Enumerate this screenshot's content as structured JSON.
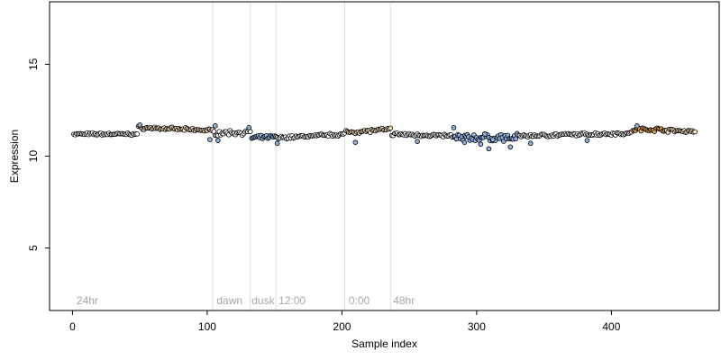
{
  "chart_data": {
    "type": "scatter",
    "xlabel": "Sample index",
    "ylabel": "Expression",
    "xlim": [
      -17,
      480
    ],
    "ylim": [
      1.6,
      18.4
    ],
    "x_ticks": [
      0,
      100,
      200,
      300,
      400
    ],
    "y_ticks": [
      5,
      10,
      15
    ],
    "grid": false,
    "point_colors": {
      "default": "#ffffff",
      "light": "#fde9c4",
      "highlight": "#f5b25a",
      "blue": "#8fb0e0",
      "outline": "#000000"
    },
    "vertical_lines": [
      104,
      132,
      151,
      202,
      236
    ],
    "region_labels": [
      {
        "x": 3,
        "label": "24hr"
      },
      {
        "x": 107,
        "label": "dawn"
      },
      {
        "x": 133,
        "label": "dusk"
      },
      {
        "x": 153,
        "label": "12:00"
      },
      {
        "x": 205,
        "label": "0:00"
      },
      {
        "x": 238,
        "label": "48hr"
      }
    ],
    "series": [
      {
        "segments": [
          {
            "x0": 1,
            "x1": 48,
            "y0": 11.2,
            "y1": 11.2,
            "noise": 0.08,
            "color": "default"
          },
          {
            "x0": 49,
            "x1": 104,
            "y0": 11.55,
            "y1": 11.4,
            "noise": 0.1,
            "color": "light"
          },
          {
            "x0": 105,
            "x1": 132,
            "y0": 11.25,
            "y1": 11.3,
            "noise": 0.15,
            "color": "default"
          },
          {
            "x0": 133,
            "x1": 151,
            "y0": 11.0,
            "y1": 11.05,
            "noise": 0.12,
            "color": "blue"
          },
          {
            "x0": 152,
            "x1": 202,
            "y0": 11.0,
            "y1": 11.2,
            "noise": 0.1,
            "color": "default"
          },
          {
            "x0": 203,
            "x1": 236,
            "y0": 11.3,
            "y1": 11.45,
            "noise": 0.12,
            "color": "light"
          },
          {
            "x0": 237,
            "x1": 282,
            "y0": 11.2,
            "y1": 11.1,
            "noise": 0.1,
            "color": "default"
          },
          {
            "x0": 283,
            "x1": 330,
            "y0": 11.0,
            "y1": 11.0,
            "noise": 0.25,
            "color": "blue"
          },
          {
            "x0": 331,
            "x1": 415,
            "y0": 11.1,
            "y1": 11.25,
            "noise": 0.1,
            "color": "default"
          },
          {
            "x0": 416,
            "x1": 440,
            "y0": 11.45,
            "y1": 11.45,
            "noise": 0.12,
            "color": "highlight"
          },
          {
            "x0": 441,
            "x1": 462,
            "y0": 11.4,
            "y1": 11.35,
            "noise": 0.1,
            "color": "light"
          }
        ],
        "outliers": [
          {
            "x": 50,
            "y": 11.7
          },
          {
            "x": 102,
            "y": 10.9
          },
          {
            "x": 106,
            "y": 11.65
          },
          {
            "x": 108,
            "y": 10.85
          },
          {
            "x": 131,
            "y": 11.55
          },
          {
            "x": 152,
            "y": 10.7
          },
          {
            "x": 210,
            "y": 10.75
          },
          {
            "x": 256,
            "y": 10.8
          },
          {
            "x": 283,
            "y": 11.55
          },
          {
            "x": 291,
            "y": 10.75
          },
          {
            "x": 303,
            "y": 10.65
          },
          {
            "x": 306,
            "y": 11.2
          },
          {
            "x": 309,
            "y": 10.4
          },
          {
            "x": 312,
            "y": 10.9
          },
          {
            "x": 325,
            "y": 10.5
          },
          {
            "x": 340,
            "y": 10.7
          },
          {
            "x": 382,
            "y": 10.85
          },
          {
            "x": 419,
            "y": 11.65
          }
        ]
      }
    ]
  }
}
